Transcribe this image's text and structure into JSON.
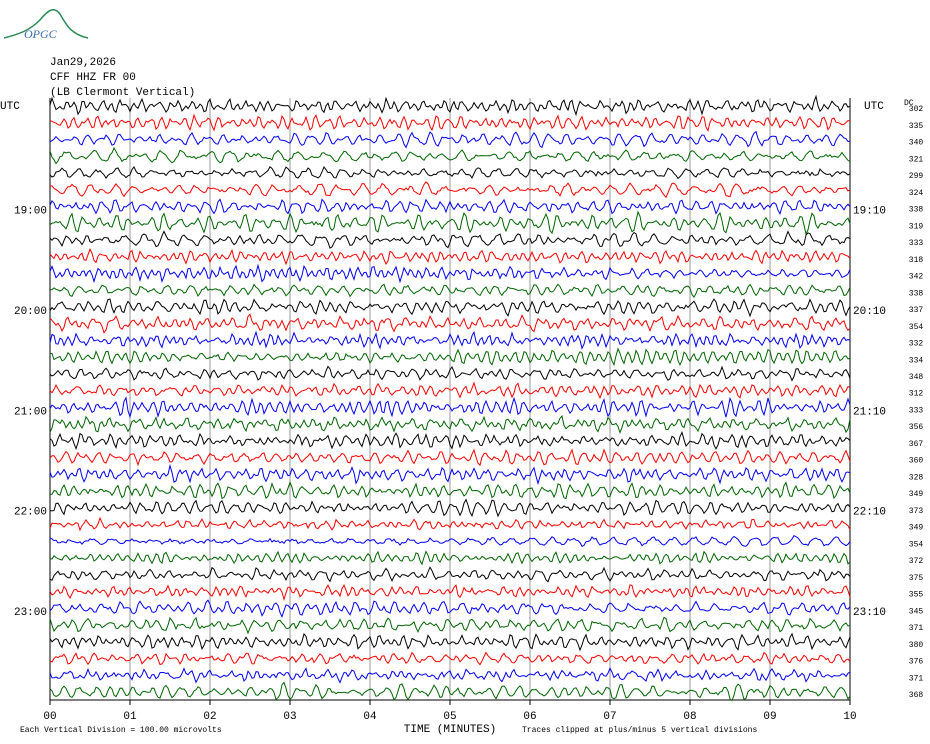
{
  "logo": "OPGC",
  "chart_data": {
    "type": "helicorder",
    "date": "Jan29,2026",
    "station": "CFF HHZ FR 00",
    "location": "(LB  Clermont Vertical)",
    "dc_header": "DC",
    "left_labels": [
      "UTC",
      null,
      null,
      null,
      null,
      null,
      "19:00",
      null,
      null,
      null,
      null,
      null,
      "20:00",
      null,
      null,
      null,
      null,
      null,
      "21:00",
      null,
      null,
      null,
      null,
      null,
      "22:00",
      null,
      null,
      null,
      null,
      null,
      "23:00",
      null,
      null,
      null,
      null,
      null
    ],
    "right_labels": [
      "UTC",
      null,
      null,
      null,
      null,
      null,
      "19:10",
      null,
      null,
      null,
      null,
      null,
      "20:10",
      null,
      null,
      null,
      null,
      null,
      "21:10",
      null,
      null,
      null,
      null,
      null,
      "22:10",
      null,
      null,
      null,
      null,
      null,
      "23:10",
      null,
      null,
      null,
      null,
      null
    ],
    "dc_offsets": [
      302,
      335,
      340,
      321,
      299,
      324,
      338,
      319,
      333,
      318,
      342,
      338,
      337,
      354,
      332,
      334,
      348,
      312,
      333,
      356,
      367,
      360,
      328,
      349,
      373,
      349,
      354,
      372,
      375,
      355,
      345,
      371,
      380,
      376,
      371,
      368
    ],
    "trace_colors": [
      "#000000",
      "#ff0000",
      "#0000ff",
      "#006400"
    ],
    "xlim": [
      0,
      10
    ],
    "xticks": [
      {
        "value": 0,
        "label": "00"
      },
      {
        "value": 1,
        "label": "01"
      },
      {
        "value": 2,
        "label": "02"
      },
      {
        "value": 3,
        "label": "03"
      },
      {
        "value": 4,
        "label": "04"
      },
      {
        "value": 5,
        "label": "05"
      },
      {
        "value": 6,
        "label": "06"
      },
      {
        "value": 7,
        "label": "07"
      },
      {
        "value": 8,
        "label": "08"
      },
      {
        "value": 9,
        "label": "09"
      },
      {
        "value": 10,
        "label": "10"
      }
    ],
    "grid": true,
    "xlabel": "TIME (MINUTES)",
    "scale_note": "Each Vertical Division =  100.00 microvolts",
    "clip_note": "Traces clipped at plus/minus 5 vertical divisions"
  }
}
